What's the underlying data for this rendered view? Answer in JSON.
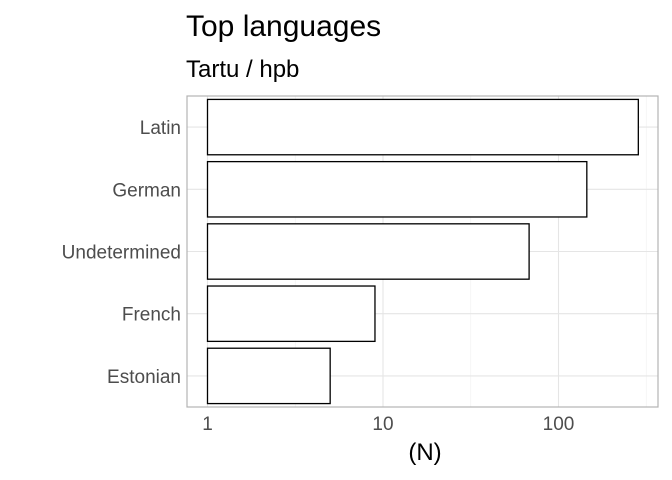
{
  "chart_data": {
    "type": "bar",
    "orientation": "horizontal",
    "title": "Top languages",
    "subtitle": "Tartu / hpb",
    "xlabel": "(N)",
    "ylabel": "",
    "x_scale": "log10",
    "xlim": [
      0.8,
      360
    ],
    "x_ticks": [
      1,
      10,
      100
    ],
    "x_tick_labels": [
      "1",
      "10",
      "100"
    ],
    "grid": true,
    "categories": [
      "Latin",
      "German",
      "Undetermined",
      "French",
      "Estonian"
    ],
    "values": [
      285,
      145,
      68,
      9,
      5
    ],
    "bar_fill": "#ffffff",
    "bar_stroke": "#000000"
  }
}
